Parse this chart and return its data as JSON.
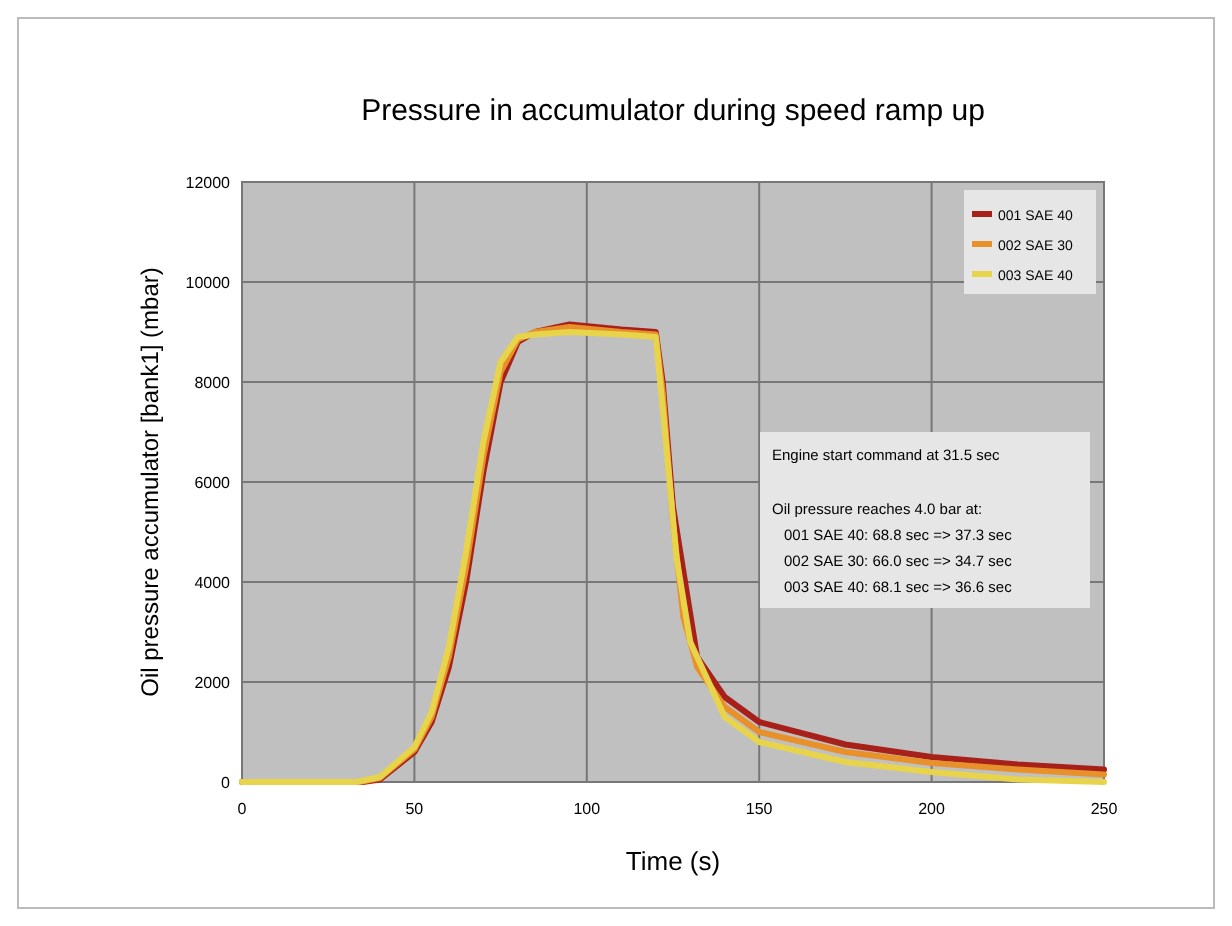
{
  "chart_data": {
    "type": "line",
    "title": "Pressure in accumulator during speed ramp up",
    "xlabel": "Time (s)",
    "ylabel": "Oil pressure accumulator [bank1] (mbar)",
    "xlim": [
      0,
      250
    ],
    "xticks": [
      0,
      50,
      100,
      150,
      200,
      250
    ],
    "ylim": [
      0,
      12000
    ],
    "yticks": [
      0,
      2000,
      4000,
      6000,
      8000,
      10000,
      12000
    ],
    "grid": true,
    "legend": "top right",
    "series": [
      {
        "name": "001 SAE 40",
        "color": "#a8201a",
        "x": [
          0,
          35,
          40,
          50,
          55,
          60,
          65,
          70,
          75,
          80,
          85,
          95,
          110,
          120,
          122,
          125,
          132,
          140,
          150,
          175,
          200,
          225,
          250
        ],
        "values": [
          0,
          0,
          50,
          600,
          1200,
          2300,
          4000,
          6200,
          8000,
          8800,
          9000,
          9150,
          9050,
          9000,
          8000,
          5500,
          2500,
          1700,
          1200,
          750,
          500,
          350,
          250
        ]
      },
      {
        "name": "002 SAE 30",
        "color": "#e8902a",
        "x": [
          0,
          34,
          40,
          50,
          55,
          60,
          65,
          70,
          75,
          80,
          85,
          95,
          110,
          120,
          122,
          125,
          128,
          132,
          140,
          150,
          175,
          200,
          225,
          250
        ],
        "values": [
          0,
          0,
          80,
          650,
          1300,
          2500,
          4300,
          6500,
          8200,
          8850,
          9000,
          9100,
          9000,
          8950,
          7800,
          5200,
          3300,
          2300,
          1500,
          1000,
          600,
          380,
          250,
          150
        ]
      },
      {
        "name": "003 SAE 40",
        "color": "#e8d44a",
        "x": [
          0,
          33,
          40,
          50,
          55,
          60,
          65,
          70,
          75,
          80,
          85,
          95,
          110,
          120,
          122,
          126,
          130,
          140,
          150,
          175,
          200,
          225,
          250
        ],
        "values": [
          0,
          0,
          100,
          700,
          1400,
          2700,
          4600,
          6800,
          8400,
          8900,
          8950,
          9000,
          8950,
          8900,
          7500,
          4500,
          2800,
          1300,
          800,
          400,
          200,
          50,
          0
        ]
      }
    ],
    "annotations": [
      "Engine start command at 31.5 sec",
      "Oil pressure reaches 4.0 bar at:",
      "001 SAE 40: 68.8 sec => 37.3 sec",
      "002 SAE 30: 66.0 sec => 34.7 sec",
      "003 SAE 40: 68.1 sec => 36.6 sec"
    ]
  }
}
